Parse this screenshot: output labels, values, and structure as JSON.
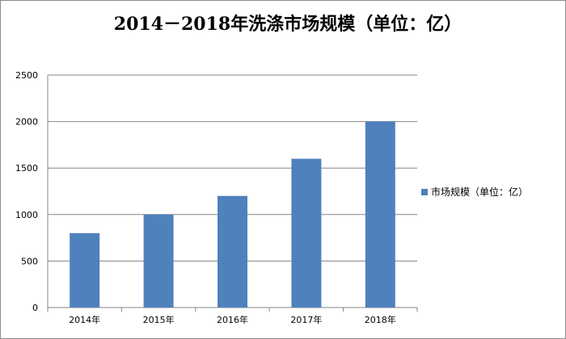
{
  "chart_data": {
    "type": "bar",
    "title": "2014－2018年洗涤市场规模（单位：亿）",
    "categories": [
      "2014年",
      "2015年",
      "2016年",
      "2017年",
      "2018年"
    ],
    "series": [
      {
        "name": "市场规模（单位：亿）",
        "values": [
          800,
          1000,
          1200,
          1600,
          2000
        ]
      }
    ],
    "ylim": [
      0,
      2500
    ],
    "yticks": [
      0,
      500,
      1000,
      1500,
      2000,
      2500
    ],
    "grid": true,
    "legend_position": "right",
    "bar_color": "#4f81bd",
    "grid_color": "#868686"
  }
}
